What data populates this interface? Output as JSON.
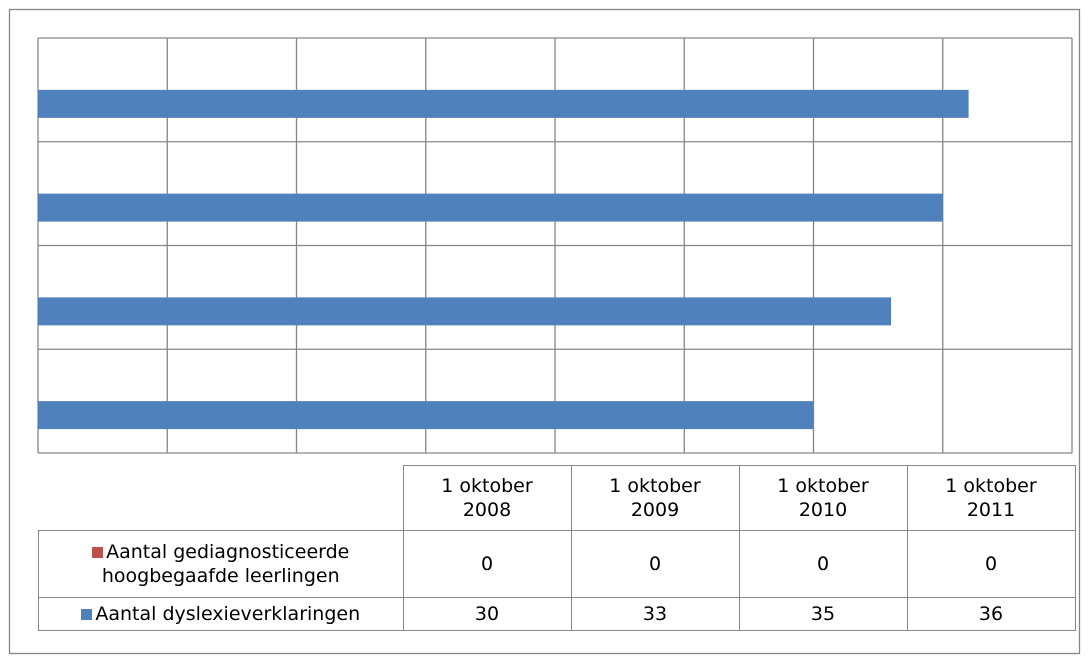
{
  "chart_data": {
    "type": "bar",
    "orientation": "horizontal",
    "categories": [
      "1 oktober 2008",
      "1 oktober 2009",
      "1 oktober 2010",
      "1 oktober 2011"
    ],
    "series": [
      {
        "name": "Aantal gediagnosticeerde hoogbegaafde leerlingen",
        "color": "#c0504d",
        "values": [
          0,
          0,
          0,
          0
        ]
      },
      {
        "name": "Aantal dyslexieverklaringen",
        "color": "#4f81bd",
        "values": [
          30,
          33,
          35,
          36
        ]
      }
    ],
    "xlim": [
      0,
      40
    ],
    "xticks": [
      0,
      5,
      10,
      15,
      20,
      25,
      30,
      35,
      40
    ],
    "grid": true,
    "data_table": true
  }
}
